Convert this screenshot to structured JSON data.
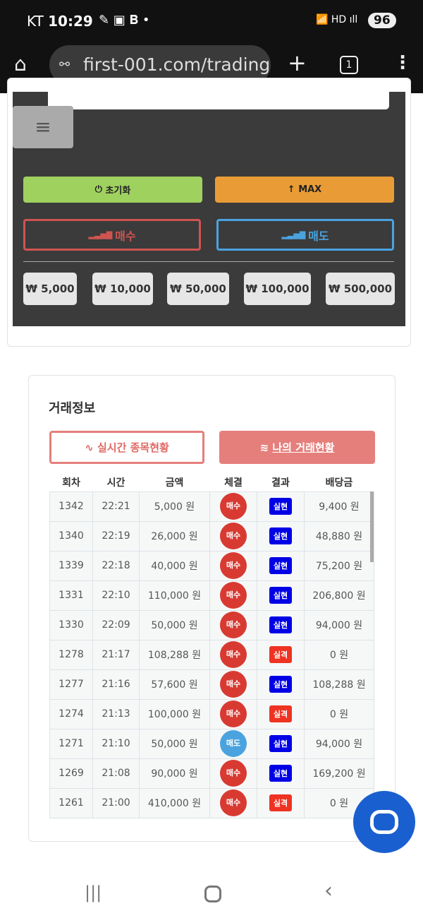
{
  "status_bar": {
    "carrier": "KT",
    "time": "10:29",
    "battery": "96"
  },
  "browser": {
    "url": "first-001.com/trading",
    "tab_count": "1"
  },
  "controls": {
    "reset": "초기화",
    "max": "MAX",
    "buy": "매수",
    "sell": "매도",
    "amounts": [
      "₩ 5,000",
      "₩ 10,000",
      "₩ 50,000",
      "₩ 100,000",
      "₩ 500,000"
    ]
  },
  "trade_info": {
    "title": "거래정보",
    "tab_realtime": "실시간 종목현황",
    "tab_mine": "나의 거래현황",
    "columns": [
      "회차",
      "시간",
      "금액",
      "체결",
      "결과",
      "배당금"
    ],
    "rows": [
      [
        "1342",
        "22:21",
        "5,000 원",
        "매수",
        "실현",
        "9,400 원"
      ],
      [
        "1340",
        "22:19",
        "26,000 원",
        "매수",
        "실현",
        "48,880 원"
      ],
      [
        "1339",
        "22:18",
        "40,000 원",
        "매수",
        "실현",
        "75,200 원"
      ],
      [
        "1331",
        "22:10",
        "110,000 원",
        "매수",
        "실현",
        "206,800 원"
      ],
      [
        "1330",
        "22:09",
        "50,000 원",
        "매수",
        "실현",
        "94,000 원"
      ],
      [
        "1278",
        "21:17",
        "108,288 원",
        "매수",
        "실격",
        "0 원"
      ],
      [
        "1277",
        "21:16",
        "57,600 원",
        "매수",
        "실현",
        "108,288 원"
      ],
      [
        "1274",
        "21:13",
        "100,000 원",
        "매수",
        "실격",
        "0 원"
      ],
      [
        "1271",
        "21:10",
        "50,000 원",
        "매도",
        "실현",
        "94,000 원"
      ],
      [
        "1269",
        "21:08",
        "90,000 원",
        "매수",
        "실현",
        "169,200 원"
      ],
      [
        "1261",
        "21:00",
        "410,000 원",
        "매수",
        "실격",
        "0 원"
      ]
    ]
  },
  "colors": {
    "buy": "#d83a32",
    "sell": "#4aa3df",
    "win": "#0000e6",
    "lose": "#ee3322",
    "accent": "#e57f7c"
  }
}
